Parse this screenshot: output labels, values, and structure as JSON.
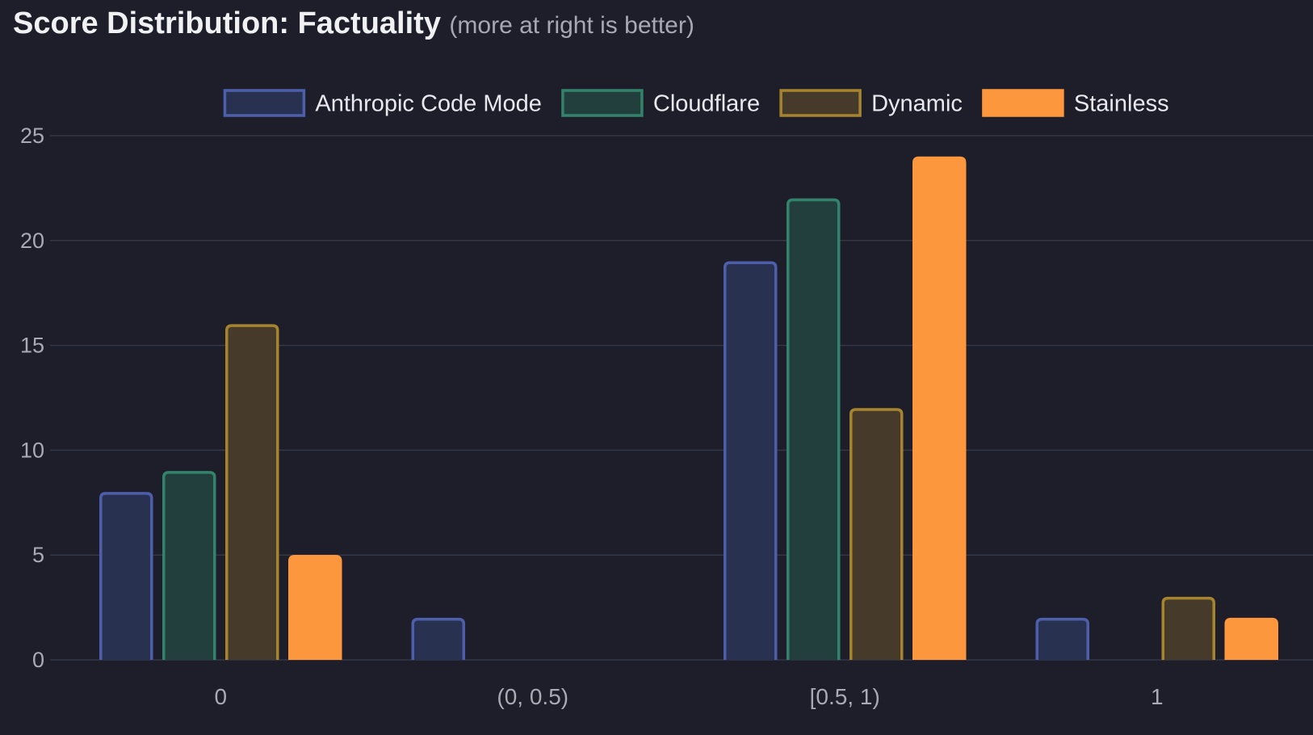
{
  "title": "Score Distribution: Factuality",
  "subtitle": "(more at right is better)",
  "chart_data": {
    "type": "bar",
    "title": "Score Distribution: Factuality",
    "subtitle": "(more at right is better)",
    "xlabel": "",
    "ylabel": "",
    "categories": [
      "0",
      "(0, 0.5)",
      "[0.5, 1)",
      "1"
    ],
    "ylim": [
      0,
      25
    ],
    "yticks": [
      0,
      5,
      10,
      15,
      20,
      25
    ],
    "grid": true,
    "legend_position": "top",
    "series": [
      {
        "name": "Anthropic Code Mode",
        "values": [
          8,
          2,
          19,
          2
        ],
        "fill": "#283150",
        "stroke": "#4d5faa"
      },
      {
        "name": "Cloudflare",
        "values": [
          9,
          0,
          22,
          0
        ],
        "fill": "#223f3d",
        "stroke": "#33836c"
      },
      {
        "name": "Dynamic",
        "values": [
          16,
          0,
          12,
          3
        ],
        "fill": "#463b2b",
        "stroke": "#a6842e"
      },
      {
        "name": "Stainless",
        "values": [
          5,
          0,
          24,
          2
        ],
        "fill": "#fd973d",
        "stroke": "#fd973d"
      }
    ],
    "colors": {
      "background": "#1d1e2a",
      "grid": "#353747",
      "tick_text": "#a9aab4",
      "legend_text": "#e8e8ee"
    }
  }
}
